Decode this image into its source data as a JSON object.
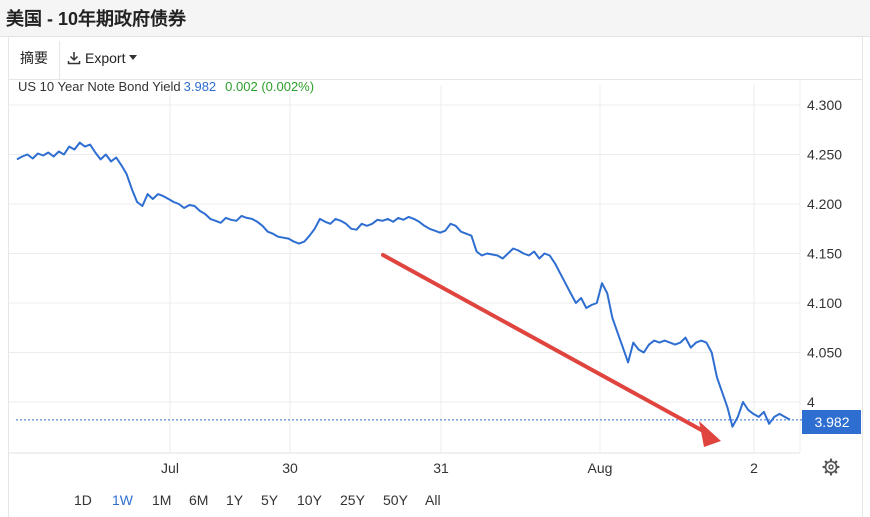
{
  "header": {
    "title": "美国 - 10年期政府债券"
  },
  "toolbar": {
    "summary_tab": "摘要",
    "export_label": "Export"
  },
  "legend": {
    "name": "US 10 Year Note Bond Yield",
    "value": "3.982",
    "change": "0.002 (0.002%)"
  },
  "ranges": [
    "1D",
    "1W",
    "1M",
    "6M",
    "1Y",
    "5Y",
    "10Y",
    "25Y",
    "50Y",
    "All"
  ],
  "active_range": "1W",
  "colors": {
    "line": "#2f6ed1",
    "arrow": "#e0443e",
    "badge": "#2f6ed1",
    "up": "#2ca02c"
  },
  "chart_data": {
    "type": "line",
    "title": "",
    "xlabel": "",
    "ylabel": "",
    "x_ticks": [
      "Jul",
      "30",
      "31",
      "Aug",
      "2"
    ],
    "y_ticks": [
      4.3,
      4.25,
      4.2,
      4.15,
      4.1,
      4.05,
      4.0
    ],
    "y_tick_labels": [
      "4.300",
      "4.250",
      "4.200",
      "4.150",
      "4.100",
      "4.050",
      "4"
    ],
    "ylim": [
      3.96,
      4.31
    ],
    "last_value": 3.982,
    "last_value_label": "3.982",
    "grid": true,
    "series": [
      {
        "values": [
          4.245,
          4.248,
          4.25,
          4.246,
          4.251,
          4.249,
          4.252,
          4.248,
          4.253,
          4.25,
          4.258,
          4.255,
          4.262,
          4.258,
          4.26,
          4.252,
          4.245,
          4.25,
          4.243,
          4.247,
          4.239,
          4.23,
          4.215,
          4.202,
          4.198,
          4.21,
          4.205,
          4.21,
          4.208,
          4.205,
          4.202,
          4.2,
          4.196,
          4.199,
          4.198,
          4.193,
          4.19,
          4.185,
          4.183,
          4.181,
          4.186,
          4.184,
          4.183,
          4.188,
          4.186,
          4.185,
          4.182,
          4.178,
          4.172,
          4.17,
          4.167,
          4.166,
          4.165,
          4.162,
          4.16,
          4.162,
          4.168,
          4.175,
          4.185,
          4.182,
          4.18,
          4.185,
          4.183,
          4.18,
          4.175,
          4.174,
          4.18,
          4.178,
          4.18,
          4.184,
          4.183,
          4.185,
          4.182,
          4.186,
          4.184,
          4.187,
          4.185,
          4.182,
          4.178,
          4.175,
          4.173,
          4.171,
          4.173,
          4.18,
          4.178,
          4.172,
          4.17,
          4.168,
          4.152,
          4.148,
          4.15,
          4.149,
          4.148,
          4.145,
          4.15,
          4.155,
          4.153,
          4.15,
          4.148,
          4.152,
          4.145,
          4.15,
          4.148,
          4.14,
          4.13,
          4.12,
          4.11,
          4.1,
          4.105,
          4.095,
          4.098,
          4.1,
          4.12,
          4.11,
          4.085,
          4.07,
          4.055,
          4.04,
          4.06,
          4.053,
          4.05,
          4.058,
          4.062,
          4.06,
          4.062,
          4.06,
          4.058,
          4.06,
          4.065,
          4.055,
          4.06,
          4.062,
          4.06,
          4.05,
          4.025,
          4.01,
          3.995,
          3.975,
          3.985,
          4.0,
          3.992,
          3.988,
          3.985,
          3.99,
          3.978,
          3.985,
          3.988,
          3.985,
          3.982
        ]
      }
    ]
  }
}
